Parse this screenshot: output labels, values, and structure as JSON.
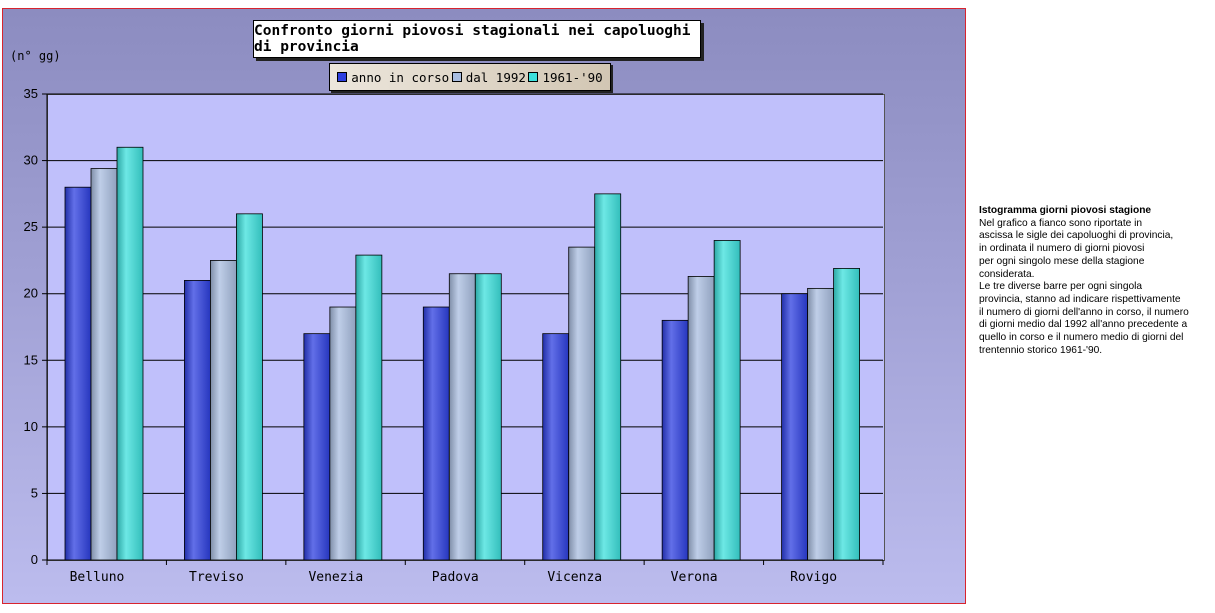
{
  "chart_data": {
    "type": "bar",
    "title": "Confronto giorni piovosi stagionali nei capoluoghi di provincia",
    "ylabel": "(n° gg)",
    "xlabel": "",
    "categories": [
      "Belluno",
      "Treviso",
      "Venezia",
      "Padova",
      "Vicenza",
      "Verona",
      "Rovigo"
    ],
    "series": [
      {
        "name": "anno in corso",
        "values": [
          28,
          21,
          17,
          19,
          17,
          18,
          20
        ]
      },
      {
        "name": "dal 1992",
        "values": [
          29.4,
          22.5,
          19,
          21.5,
          23.5,
          21.3,
          20.4
        ]
      },
      {
        "name": "1961-'90",
        "values": [
          31,
          26,
          22.9,
          21.5,
          27.5,
          24,
          21.9
        ]
      }
    ],
    "ylim": [
      0,
      35
    ],
    "yticks": [
      0,
      5,
      10,
      15,
      20,
      25,
      30,
      35
    ],
    "grid": true,
    "legend_position": "top",
    "colors": [
      "#2d3fe0",
      "#a9bde0",
      "#3ce0dc"
    ]
  },
  "description": {
    "title": "Istogramma giorni piovosi stagione",
    "lines": [
      "Nel grafico a fianco sono riportate in",
      "ascissa le sigle dei capoluoghi di provincia,",
      "in ordinata il numero di giorni piovosi",
      "per ogni singolo mese della stagione",
      "considerata.",
      "Le tre diverse barre per ogni singola",
      "provincia, stanno ad indicare rispettivamente",
      "il numero di giorni dell'anno in corso, il numero",
      "di giorni medio dal 1992 all'anno precedente a",
      "quello in corso e il numero medio di giorni  del",
      "trentennio storico 1961-'90."
    ]
  }
}
